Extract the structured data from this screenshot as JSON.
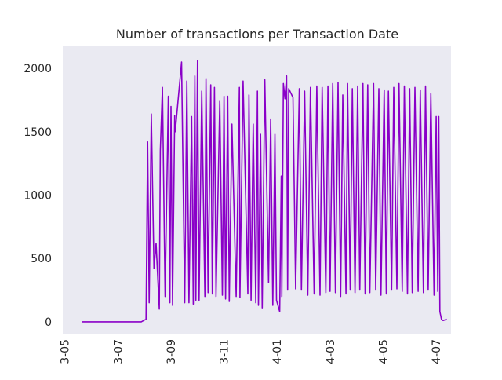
{
  "chart_data": {
    "type": "line",
    "title": "Number of transactions per Transaction Date",
    "xlabel": "",
    "ylabel": "",
    "x_tick_labels": [
      "3-05",
      "3-07",
      "3-09",
      "3-11",
      "4-01",
      "4-03",
      "4-05",
      "4-07"
    ],
    "x_tick_positions": [
      -1,
      0,
      1,
      2,
      3,
      4,
      5,
      6
    ],
    "xlim": [
      -1.04,
      6.28
    ],
    "ylim": [
      -100,
      2180
    ],
    "y_ticks": [
      0,
      500,
      1000,
      1500,
      2000
    ],
    "grid": false,
    "legend": "none",
    "colors": {
      "line": "#8a00c8",
      "plot_background": "#eaeaf2"
    },
    "series": [
      {
        "x": [
          -0.68,
          0.44,
          0.53,
          0.56,
          0.59,
          0.63,
          0.68,
          0.72,
          0.78,
          0.8,
          0.84,
          0.89,
          0.95,
          0.98,
          1.0,
          1.03,
          1.07,
          1.08,
          1.2,
          1.26,
          1.3,
          1.34,
          1.39,
          1.42,
          1.45,
          1.47,
          1.5,
          1.53,
          1.58,
          1.64,
          1.66,
          1.7,
          1.75,
          1.78,
          1.82,
          1.85,
          1.92,
          1.97,
          2.0,
          2.03,
          2.07,
          2.1,
          2.15,
          2.23,
          2.29,
          2.3,
          2.36,
          2.45,
          2.47,
          2.51,
          2.55,
          2.6,
          2.63,
          2.65,
          2.69,
          2.72,
          2.77,
          2.84,
          2.88,
          2.92,
          2.96,
          2.99,
          3.05,
          3.08,
          3.09,
          3.12,
          3.15,
          3.18,
          3.2,
          3.22,
          3.3,
          3.35,
          3.42,
          3.46,
          3.52,
          3.58,
          3.63,
          3.7,
          3.75,
          3.81,
          3.85,
          3.92,
          3.96,
          4.0,
          4.05,
          4.1,
          4.15,
          4.2,
          4.24,
          4.3,
          4.33,
          4.38,
          4.42,
          4.47,
          4.52,
          4.56,
          4.62,
          4.66,
          4.71,
          4.75,
          4.82,
          4.86,
          4.92,
          4.96,
          5.02,
          5.06,
          5.1,
          5.16,
          5.2,
          5.26,
          5.3,
          5.36,
          5.4,
          5.46,
          5.5,
          5.55,
          5.6,
          5.66,
          5.7,
          5.76,
          5.8,
          5.85,
          5.9,
          5.96,
          6.0,
          6.03,
          6.05,
          6.07,
          6.1,
          6.13,
          6.2
        ],
        "y": [
          0,
          0,
          20,
          1420,
          150,
          1640,
          420,
          620,
          100,
          1350,
          1850,
          200,
          1780,
          150,
          1700,
          130,
          1630,
          1500,
          2050,
          150,
          1900,
          150,
          1620,
          140,
          1940,
          170,
          2060,
          170,
          1820,
          200,
          1920,
          230,
          1870,
          220,
          1850,
          200,
          1740,
          210,
          1780,
          180,
          1780,
          160,
          1560,
          200,
          1850,
          190,
          1900,
          220,
          1790,
          170,
          1560,
          150,
          1820,
          130,
          1480,
          110,
          1910,
          310,
          1600,
          130,
          1480,
          170,
          80,
          1150,
          200,
          1880,
          1760,
          1940,
          250,
          1840,
          1770,
          260,
          1840,
          250,
          1820,
          210,
          1850,
          220,
          1860,
          210,
          1850,
          230,
          1860,
          240,
          1880,
          230,
          1890,
          200,
          1790,
          220,
          1880,
          250,
          1840,
          230,
          1860,
          250,
          1880,
          220,
          1870,
          230,
          1880,
          250,
          1840,
          210,
          1830,
          220,
          1820,
          250,
          1850,
          260,
          1880,
          240,
          1860,
          220,
          1840,
          230,
          1850,
          240,
          1830,
          230,
          1860,
          250,
          1800,
          210,
          1620,
          240,
          1620,
          80,
          20,
          10,
          20
        ]
      }
    ]
  }
}
